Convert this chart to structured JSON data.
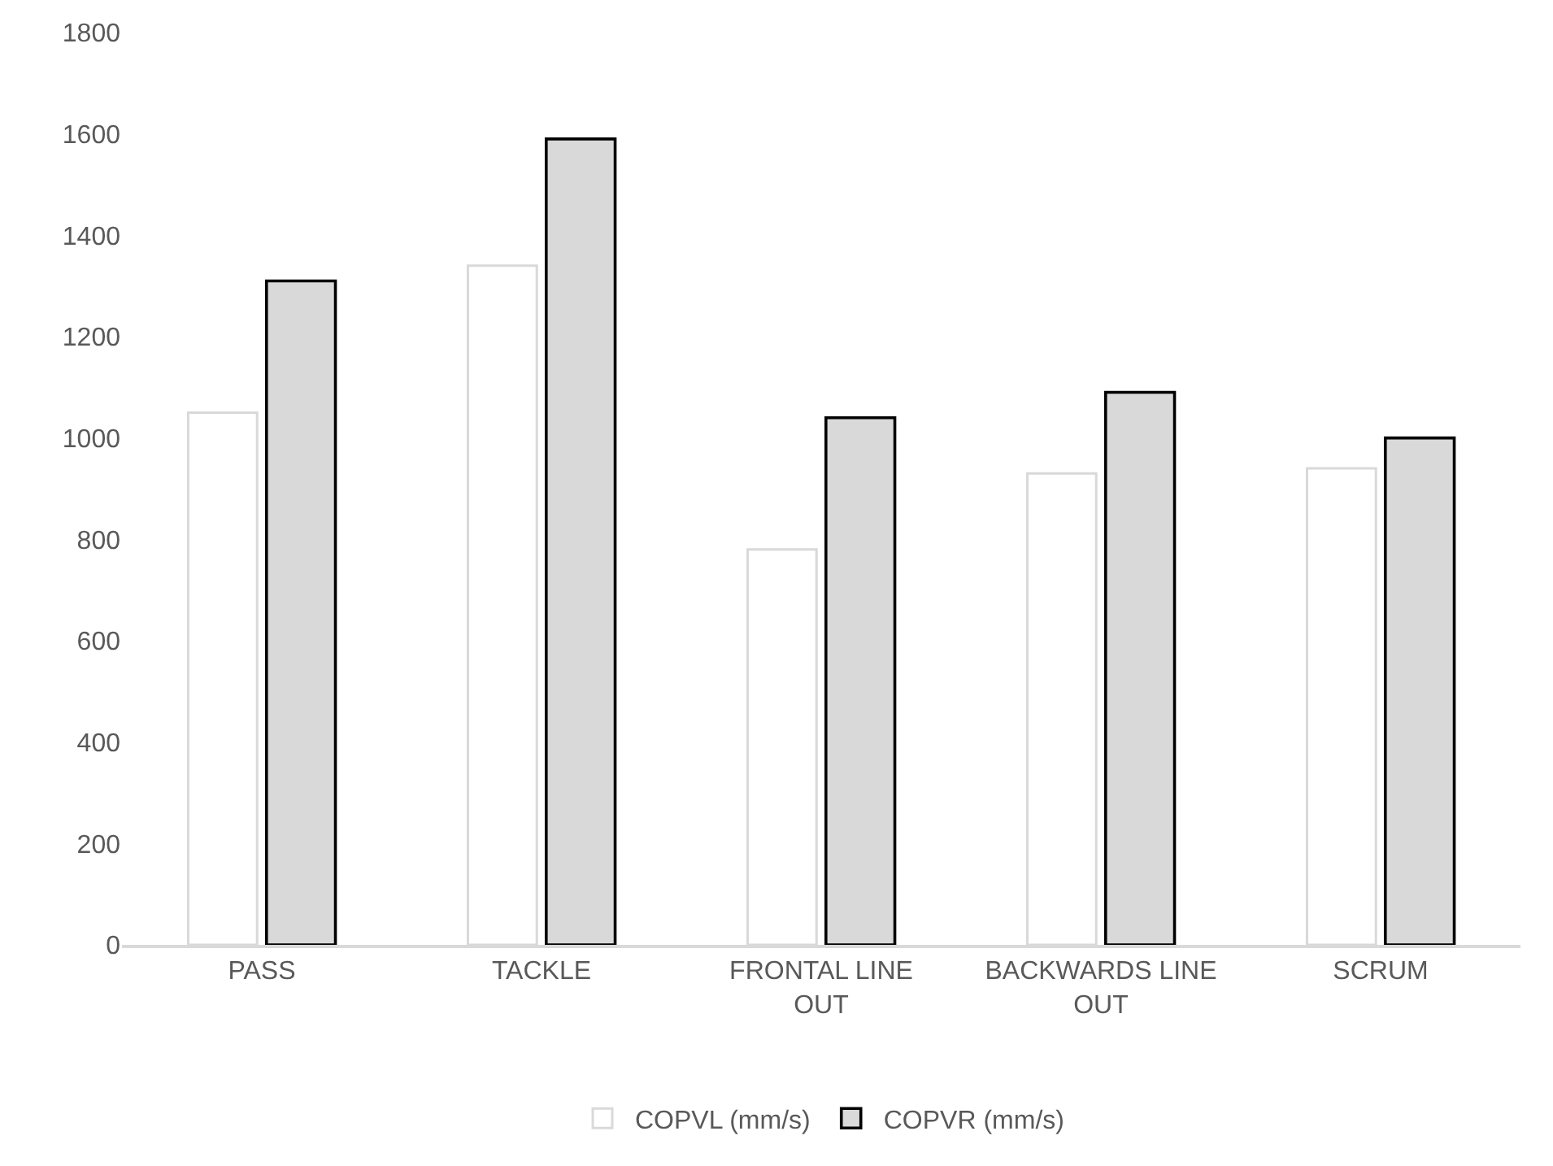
{
  "chart_data": {
    "type": "bar",
    "categories": [
      "PASS",
      "TACKLE",
      "FRONTAL LINE OUT",
      "BACKWARDS LINE OUT",
      "SCRUM"
    ],
    "series": [
      {
        "name": "COPVL (mm/s)",
        "color": "#ffffff",
        "values": [
          1050,
          1340,
          780,
          930,
          940
        ]
      },
      {
        "name": "COPVR (mm/s)",
        "color": "#d9d9d9",
        "values": [
          1310,
          1590,
          1040,
          1090,
          1000
        ]
      }
    ],
    "ylim": [
      0,
      1800
    ],
    "yticks": [
      0,
      200,
      400,
      600,
      800,
      1000,
      1200,
      1400,
      1600,
      1800
    ],
    "grid": false,
    "legend": "bottom"
  }
}
